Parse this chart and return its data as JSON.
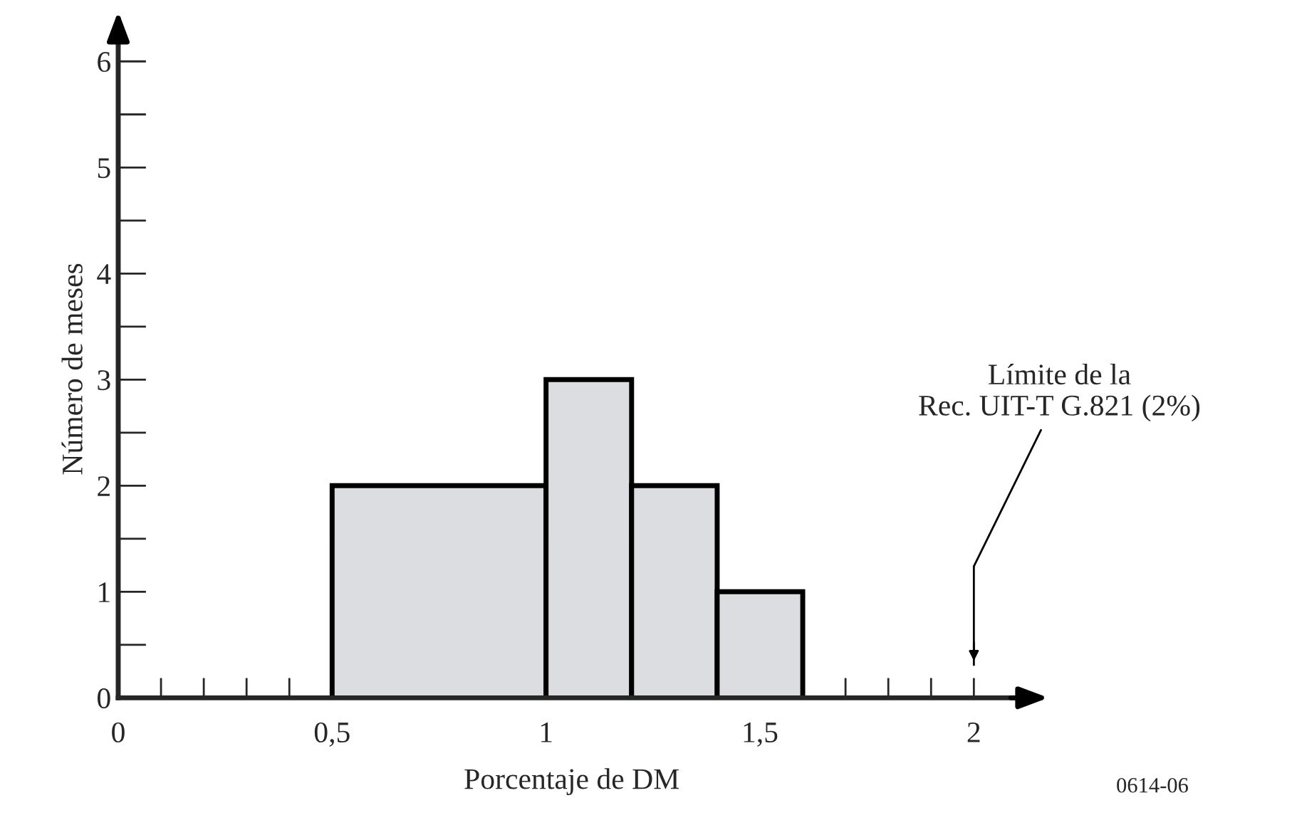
{
  "chart_data": {
    "type": "histogram",
    "bins": [
      0.5,
      1.0,
      1.2,
      1.4,
      1.6
    ],
    "values": [
      2,
      3,
      2,
      1
    ],
    "color": "#dcdde1",
    "xlabel": "Porcentaje de DM",
    "ylabel": "Número de meses",
    "xlim": [
      0,
      2.12
    ],
    "ylim": [
      0,
      6.2
    ],
    "xticks": [
      0,
      {
        "value": 0.5,
        "label": "0,5"
      },
      1,
      {
        "value": 1.5,
        "label": "1,5"
      },
      2
    ],
    "yticks": [
      0,
      1,
      2,
      3,
      4,
      5,
      6
    ],
    "ref_lines": [
      {
        "axis": "x",
        "value": 2,
        "label": "Límite de la\nRec. UIT-T G.821 (2%)"
      }
    ],
    "annotations": [
      "0614-06"
    ],
    "grid": false
  }
}
